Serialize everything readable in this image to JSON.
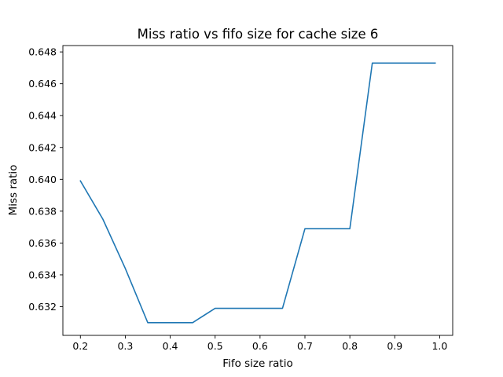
{
  "chart_data": {
    "type": "line",
    "title": "Miss ratio vs fifo size for cache size 6",
    "xlabel": "Fifo size ratio",
    "ylabel": "Miss ratio",
    "xlim": [
      0.161,
      1.029
    ],
    "ylim": [
      0.6302,
      0.6484
    ],
    "xticks": [
      0.2,
      0.3,
      0.4,
      0.5,
      0.6,
      0.7,
      0.8,
      0.9,
      1.0
    ],
    "xtick_labels": [
      "0.2",
      "0.3",
      "0.4",
      "0.5",
      "0.6",
      "0.7",
      "0.8",
      "0.9",
      "1.0"
    ],
    "yticks": [
      0.632,
      0.634,
      0.636,
      0.638,
      0.64,
      0.642,
      0.644,
      0.646,
      0.648
    ],
    "ytick_labels": [
      "0.632",
      "0.634",
      "0.636",
      "0.638",
      "0.640",
      "0.642",
      "0.644",
      "0.646",
      "0.648"
    ],
    "grid": false,
    "series": [
      {
        "color": "#1f77b4",
        "x": [
          0.2,
          0.25,
          0.3,
          0.35,
          0.4,
          0.45,
          0.5,
          0.55,
          0.6,
          0.65,
          0.7,
          0.75,
          0.8,
          0.85,
          0.9,
          0.95,
          0.99
        ],
        "y": [
          0.6399,
          0.6375,
          0.6344,
          0.631,
          0.631,
          0.631,
          0.6319,
          0.6319,
          0.6319,
          0.6319,
          0.6369,
          0.6369,
          0.6369,
          0.6473,
          0.6473,
          0.6473,
          0.6473
        ]
      }
    ]
  }
}
